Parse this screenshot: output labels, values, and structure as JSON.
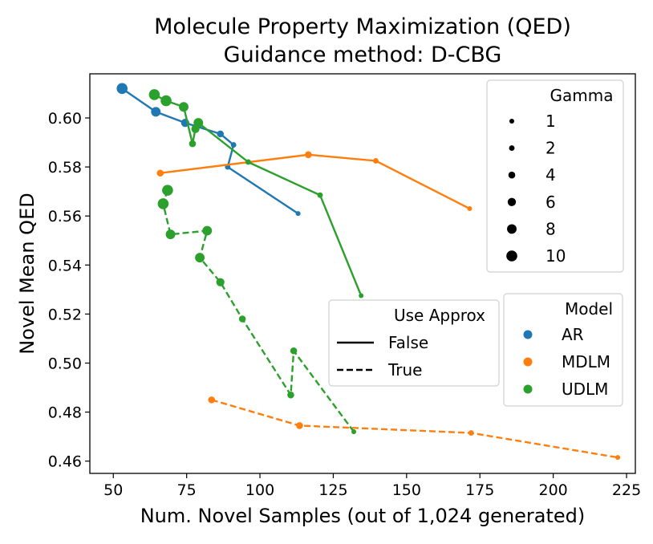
{
  "chart_data": {
    "type": "scatter",
    "title": "Molecule Property Maximization (QED)",
    "subtitle": "Guidance method: D-CBG",
    "xlabel": "Num. Novel Samples (out of 1,024 generated)",
    "ylabel": "Novel Mean QED",
    "xlim": [
      42,
      228
    ],
    "ylim": [
      0.455,
      0.618
    ],
    "xticks": [
      {
        "value": 50,
        "label": "50"
      },
      {
        "value": 75,
        "label": "75"
      },
      {
        "value": 100,
        "label": "100"
      },
      {
        "value": 125,
        "label": "125"
      },
      {
        "value": 150,
        "label": "150"
      },
      {
        "value": 175,
        "label": "175"
      },
      {
        "value": 200,
        "label": "200"
      },
      {
        "value": 225,
        "label": "225"
      }
    ],
    "yticks": [
      {
        "value": 0.46,
        "label": "0.46"
      },
      {
        "value": 0.48,
        "label": "0.48"
      },
      {
        "value": 0.5,
        "label": "0.50"
      },
      {
        "value": 0.52,
        "label": "0.52"
      },
      {
        "value": 0.54,
        "label": "0.54"
      },
      {
        "value": 0.56,
        "label": "0.56"
      },
      {
        "value": 0.58,
        "label": "0.58"
      },
      {
        "value": 0.6,
        "label": "0.60"
      }
    ],
    "grid": false,
    "series": [
      {
        "name": "AR",
        "use_approx": "False",
        "color": "#1f77b4",
        "dash": "solid",
        "points": [
          {
            "x": 53,
            "y": 0.612,
            "gamma": 10
          },
          {
            "x": 64.5,
            "y": 0.6025,
            "gamma": 8
          },
          {
            "x": 74.5,
            "y": 0.598,
            "gamma": 6
          },
          {
            "x": 86.5,
            "y": 0.5935,
            "gamma": 4
          },
          {
            "x": 91,
            "y": 0.589,
            "gamma": 2
          },
          {
            "x": 89,
            "y": 0.58,
            "gamma": 2
          },
          {
            "x": 113,
            "y": 0.561,
            "gamma": 1
          }
        ]
      },
      {
        "name": "MDLM",
        "use_approx": "False",
        "color": "#ff7f0e",
        "dash": "solid",
        "points": [
          {
            "x": 66,
            "y": 0.5775,
            "gamma": 4
          },
          {
            "x": 116.5,
            "y": 0.585,
            "gamma": 4
          },
          {
            "x": 139.5,
            "y": 0.5825,
            "gamma": 2
          },
          {
            "x": 171.5,
            "y": 0.563,
            "gamma": 1
          }
        ]
      },
      {
        "name": "UDLM",
        "use_approx": "False",
        "color": "#2ca02c",
        "dash": "solid",
        "points": [
          {
            "x": 64,
            "y": 0.6095,
            "gamma": 10
          },
          {
            "x": 68,
            "y": 0.607,
            "gamma": 10
          },
          {
            "x": 74,
            "y": 0.6045,
            "gamma": 8
          },
          {
            "x": 77,
            "y": 0.5895,
            "gamma": 4
          },
          {
            "x": 78,
            "y": 0.5955,
            "gamma": 6
          },
          {
            "x": 79,
            "y": 0.598,
            "gamma": 8
          },
          {
            "x": 96,
            "y": 0.582,
            "gamma": 2
          },
          {
            "x": 120.5,
            "y": 0.5685,
            "gamma": 2
          },
          {
            "x": 134.5,
            "y": 0.5275,
            "gamma": 1
          }
        ]
      },
      {
        "name": "MDLM",
        "use_approx": "True",
        "color": "#ff7f0e",
        "dash": "dashed",
        "points": [
          {
            "x": 83.5,
            "y": 0.485,
            "gamma": 4
          },
          {
            "x": 113.5,
            "y": 0.4745,
            "gamma": 4
          },
          {
            "x": 172,
            "y": 0.4715,
            "gamma": 2
          },
          {
            "x": 222,
            "y": 0.4615,
            "gamma": 1
          }
        ]
      },
      {
        "name": "UDLM",
        "use_approx": "True",
        "color": "#2ca02c",
        "dash": "dashed",
        "points": [
          {
            "x": 68.5,
            "y": 0.5705,
            "gamma": 10
          },
          {
            "x": 67,
            "y": 0.565,
            "gamma": 10
          },
          {
            "x": 69.5,
            "y": 0.5525,
            "gamma": 8
          },
          {
            "x": 82,
            "y": 0.554,
            "gamma": 8
          },
          {
            "x": 79.5,
            "y": 0.543,
            "gamma": 8
          },
          {
            "x": 86.5,
            "y": 0.533,
            "gamma": 6
          },
          {
            "x": 94,
            "y": 0.518,
            "gamma": 4
          },
          {
            "x": 110.5,
            "y": 0.487,
            "gamma": 4
          },
          {
            "x": 111.5,
            "y": 0.505,
            "gamma": 4
          },
          {
            "x": 132,
            "y": 0.472,
            "gamma": 1
          }
        ]
      }
    ],
    "legends": {
      "gamma": {
        "title": "Gamma",
        "items": [
          {
            "label": "1",
            "gamma": 1
          },
          {
            "label": "2",
            "gamma": 2
          },
          {
            "label": "4",
            "gamma": 4
          },
          {
            "label": "6",
            "gamma": 6
          },
          {
            "label": "8",
            "gamma": 8
          },
          {
            "label": "10",
            "gamma": 10
          }
        ]
      },
      "approx": {
        "title": "Use Approx",
        "items": [
          {
            "label": "False",
            "dash": "solid"
          },
          {
            "label": "True",
            "dash": "dashed"
          }
        ]
      },
      "model": {
        "title": "Model",
        "items": [
          {
            "label": "AR",
            "color": "#1f77b4"
          },
          {
            "label": "MDLM",
            "color": "#ff7f0e"
          },
          {
            "label": "UDLM",
            "color": "#2ca02c"
          }
        ]
      }
    }
  }
}
